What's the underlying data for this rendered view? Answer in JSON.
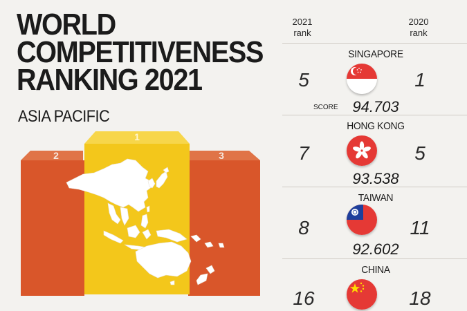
{
  "header": {
    "title_lines": [
      "WORLD",
      "COMPETITIVENESS",
      "RANKING 2021"
    ],
    "subtitle": "ASIA PACIFIC"
  },
  "podium": {
    "first_label": "1",
    "second_label": "2",
    "third_label": "3",
    "colors": {
      "orange": "#d9562a",
      "orange_top": "#e06a3c",
      "yellow": "#f3c71b",
      "yellow_top": "#f7d64a",
      "map": "#ffffff"
    }
  },
  "ranking": {
    "col_2021": {
      "year": "2021",
      "word": "rank"
    },
    "col_2020": {
      "year": "2020",
      "word": "rank"
    },
    "score_label": "SCORE",
    "rows": [
      {
        "country": "SINGAPORE",
        "rank_2021": "5",
        "rank_2020": "1",
        "score": "94.703",
        "flag": "singapore-flag"
      },
      {
        "country": "HONG KONG",
        "rank_2021": "7",
        "rank_2020": "5",
        "score": "93.538",
        "flag": "hong-kong-flag"
      },
      {
        "country": "TAIWAN",
        "rank_2021": "8",
        "rank_2020": "11",
        "score": "92.602",
        "flag": "taiwan-flag"
      },
      {
        "country": "CHINA",
        "rank_2021": "16",
        "rank_2020": "18",
        "score": "",
        "flag": "china-flag"
      }
    ]
  }
}
